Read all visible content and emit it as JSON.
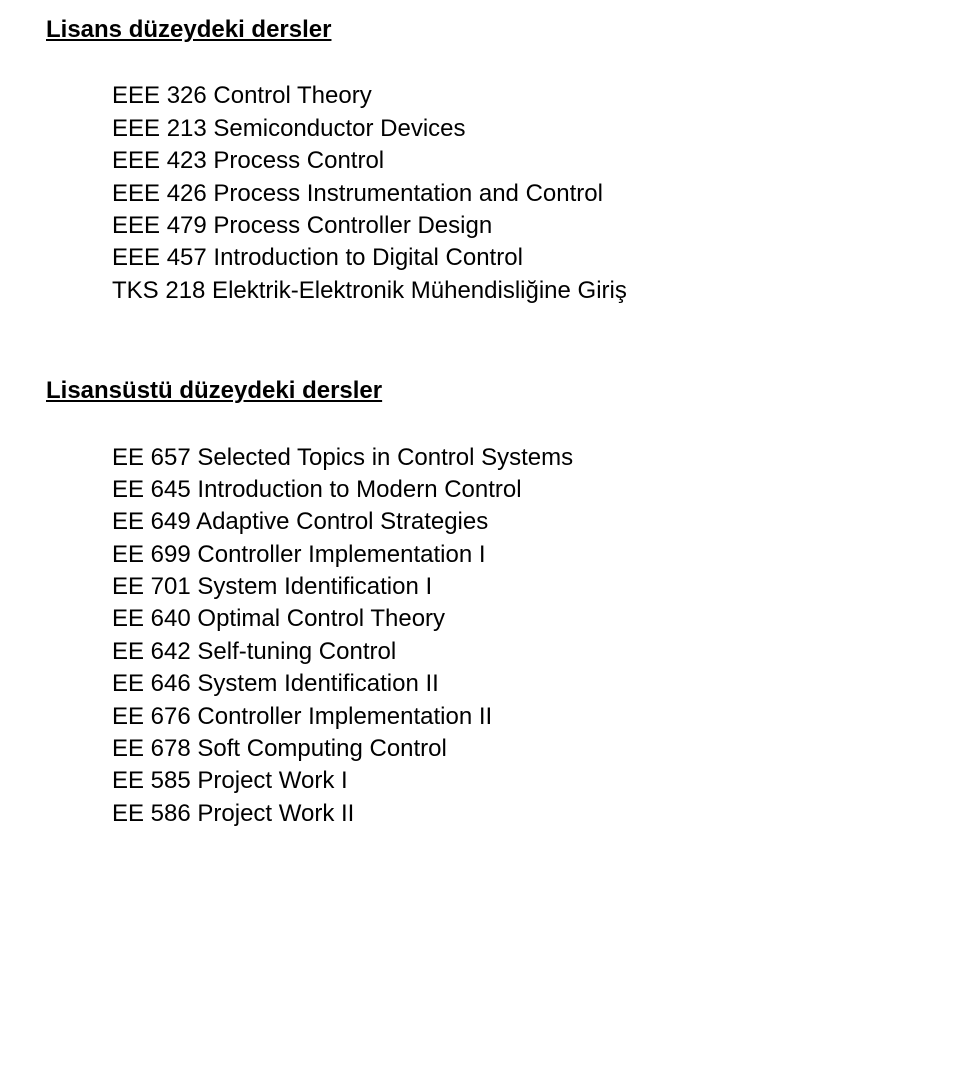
{
  "sections": [
    {
      "heading": "Lisans düzeydeki dersler",
      "gap_after_heading": "large",
      "courses": [
        "EEE 326 Control Theory",
        "EEE 213 Semiconductor Devices",
        "EEE 423 Process Control",
        "EEE 426 Process Instrumentation and Control",
        "EEE 479 Process Controller Design",
        "EEE 457 Introduction to Digital Control",
        "TKS 218 Elektrik-Elektronik Mühendisliğine Giriş"
      ]
    },
    {
      "heading": "Lisansüstü düzeydeki dersler",
      "gap_after_heading": "large",
      "courses": [
        "EE 657 Selected Topics in Control Systems",
        "EE 645 Introduction to Modern Control",
        "EE 649 Adaptive Control Strategies",
        "EE 699 Controller Implementation I",
        "EE 701 System Identification I",
        "EE 640 Optimal Control Theory",
        "EE 642 Self-tuning Control",
        "EE 646 System Identification II",
        "EE 676 Controller Implementation II",
        "EE 678 Soft Computing Control",
        "EE 585 Project Work I",
        "EE 586 Project Work II"
      ]
    }
  ]
}
